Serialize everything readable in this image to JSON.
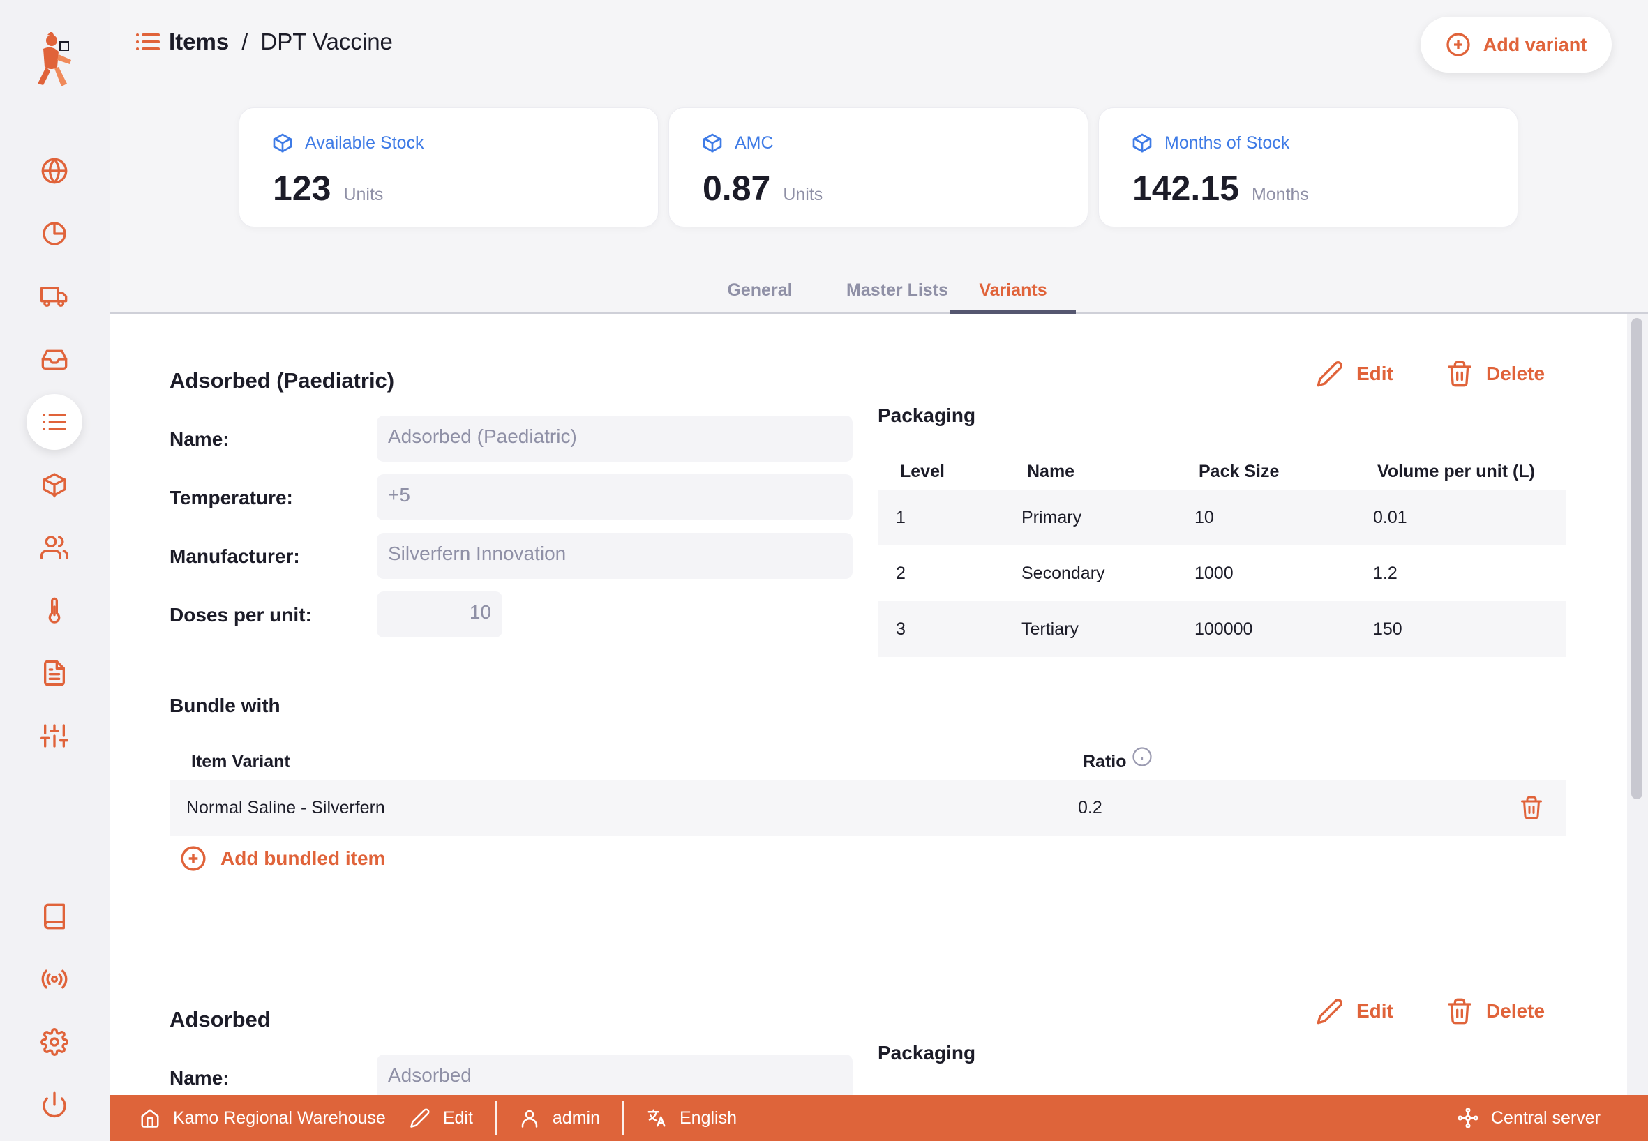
{
  "header": {
    "breadcrumb_parent": "Items",
    "breadcrumb_separator": "/",
    "breadcrumb_current": "DPT Vaccine",
    "add_variant_label": "Add variant"
  },
  "stats": [
    {
      "label": "Available Stock",
      "value": "123",
      "unit": "Units"
    },
    {
      "label": "AMC",
      "value": "0.87",
      "unit": "Units"
    },
    {
      "label": "Months of Stock",
      "value": "142.15",
      "unit": "Months"
    }
  ],
  "tabs": [
    {
      "label": "General"
    },
    {
      "label": "Master Lists"
    },
    {
      "label": "Variants",
      "active": true
    }
  ],
  "actions": {
    "edit_label": "Edit",
    "delete_label": "Delete"
  },
  "fields": {
    "name_label": "Name:",
    "temperature_label": "Temperature:",
    "manufacturer_label": "Manufacturer:",
    "doses_label": "Doses per unit:"
  },
  "variants": [
    {
      "title": "Adsorbed (Paediatric)",
      "name": "Adsorbed (Paediatric)",
      "temperature": "+5",
      "manufacturer": "Silverfern Innovation",
      "doses_per_unit": "10",
      "packaging": {
        "title": "Packaging",
        "headers": [
          "Level",
          "Name",
          "Pack Size",
          "Volume per unit (L)"
        ],
        "rows": [
          [
            "1",
            "Primary",
            "10",
            "0.01"
          ],
          [
            "2",
            "Secondary",
            "1000",
            "1.2"
          ],
          [
            "3",
            "Tertiary",
            "100000",
            "150"
          ]
        ]
      },
      "bundle": {
        "title": "Bundle with",
        "headers": [
          "Item Variant",
          "Ratio"
        ],
        "rows": [
          [
            "Normal Saline - Silverfern",
            "0.2"
          ]
        ],
        "add_label": "Add bundled item"
      }
    },
    {
      "title": "Adsorbed",
      "name": "Adsorbed",
      "packaging": {
        "title": "Packaging"
      }
    }
  ],
  "footer": {
    "store": "Kamo Regional Warehouse",
    "edit": "Edit",
    "user": "admin",
    "language": "English",
    "server": "Central server"
  },
  "colors": {
    "accent": "#e0633a",
    "stat_blue": "#3e7be6",
    "footer_bg": "#de643a"
  }
}
